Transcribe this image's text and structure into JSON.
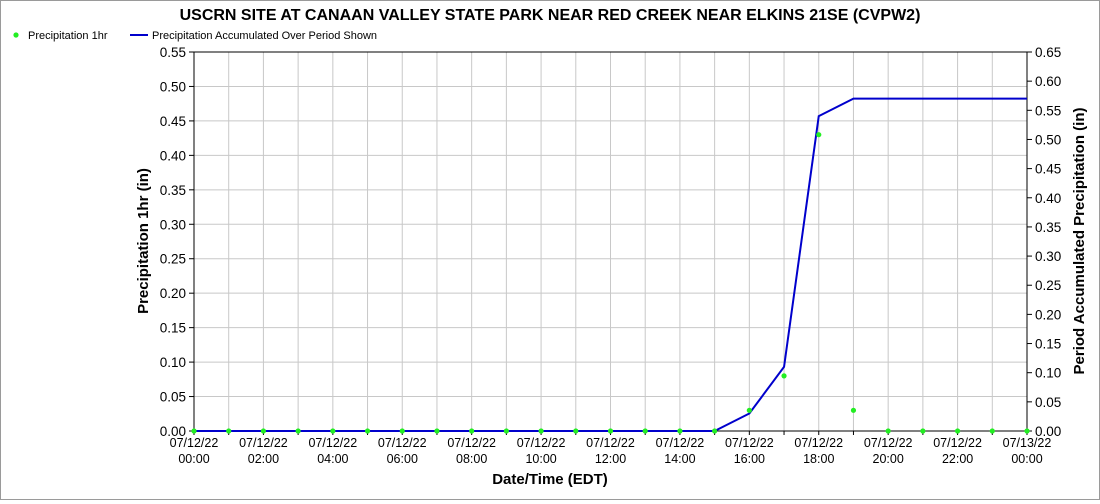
{
  "chart_data": {
    "type": "line",
    "title": "USCRN SITE AT CANAAN VALLEY STATE PARK NEAR RED CREEK NEAR ELKINS 21SE (CVPW2)",
    "xlabel": "Date/Time (EDT)",
    "ylabel_left": "Precipitation 1hr (in)",
    "ylabel_right": "Period Accumulated Precipitation (in)",
    "ylim_left": [
      0,
      0.55
    ],
    "ylim_right": [
      0,
      0.65
    ],
    "yticks_left": [
      "0.00",
      "0.05",
      "0.10",
      "0.15",
      "0.20",
      "0.25",
      "0.30",
      "0.35",
      "0.40",
      "0.45",
      "0.50",
      "0.55"
    ],
    "yticks_right": [
      "0.00",
      "0.05",
      "0.10",
      "0.15",
      "0.20",
      "0.25",
      "0.30",
      "0.35",
      "0.40",
      "0.45",
      "0.50",
      "0.55",
      "0.60",
      "0.65"
    ],
    "xlim_hours": [
      0,
      24
    ],
    "xticks": [
      {
        "hour": 0,
        "date": "07/12/22",
        "time": "00:00"
      },
      {
        "hour": 2,
        "date": "07/12/22",
        "time": "02:00"
      },
      {
        "hour": 4,
        "date": "07/12/22",
        "time": "04:00"
      },
      {
        "hour": 6,
        "date": "07/12/22",
        "time": "06:00"
      },
      {
        "hour": 8,
        "date": "07/12/22",
        "time": "08:00"
      },
      {
        "hour": 10,
        "date": "07/12/22",
        "time": "10:00"
      },
      {
        "hour": 12,
        "date": "07/12/22",
        "time": "12:00"
      },
      {
        "hour": 14,
        "date": "07/12/22",
        "time": "14:00"
      },
      {
        "hour": 16,
        "date": "07/12/22",
        "time": "16:00"
      },
      {
        "hour": 18,
        "date": "07/12/22",
        "time": "18:00"
      },
      {
        "hour": 20,
        "date": "07/12/22",
        "time": "20:00"
      },
      {
        "hour": 22,
        "date": "07/12/22",
        "time": "22:00"
      },
      {
        "hour": 24,
        "date": "07/13/22",
        "time": "00:00"
      }
    ],
    "grid": true,
    "legend_placement": "top-left",
    "series": [
      {
        "name": "Precipitation 1hr",
        "kind": "scatter",
        "axis": "left",
        "color": "#22ee22",
        "points": [
          [
            0,
            0
          ],
          [
            1,
            0
          ],
          [
            2,
            0
          ],
          [
            3,
            0
          ],
          [
            4,
            0
          ],
          [
            5,
            0
          ],
          [
            6,
            0
          ],
          [
            7,
            0
          ],
          [
            8,
            0
          ],
          [
            9,
            0
          ],
          [
            10,
            0
          ],
          [
            11,
            0
          ],
          [
            12,
            0
          ],
          [
            13,
            0
          ],
          [
            14,
            0
          ],
          [
            15,
            0
          ],
          [
            16,
            0.03
          ],
          [
            17,
            0.08
          ],
          [
            18,
            0.43
          ],
          [
            19,
            0.03
          ],
          [
            20,
            0
          ],
          [
            21,
            0
          ],
          [
            22,
            0
          ],
          [
            23,
            0
          ],
          [
            24,
            0
          ]
        ]
      },
      {
        "name": "Precipitation Accumulated Over Period Shown",
        "kind": "line",
        "axis": "right",
        "color": "#0000cc",
        "points": [
          [
            0,
            0
          ],
          [
            15,
            0
          ],
          [
            16,
            0.03
          ],
          [
            17,
            0.11
          ],
          [
            18,
            0.54
          ],
          [
            19,
            0.57
          ],
          [
            24,
            0.57
          ]
        ]
      }
    ]
  }
}
